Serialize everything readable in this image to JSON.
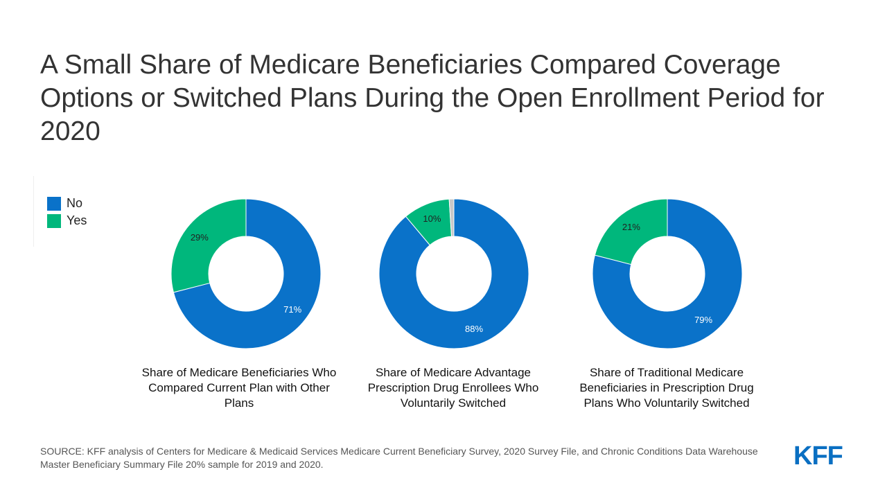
{
  "title": "A Small Share of Medicare Beneficiaries Compared Coverage Options or Switched Plans During the Open Enrollment Period for 2020",
  "legend": [
    {
      "label": "No",
      "color": "#0a72c9"
    },
    {
      "label": "Yes",
      "color": "#00b77c"
    }
  ],
  "chart_data": [
    {
      "type": "pie",
      "subtype": "donut",
      "title": "Share of Medicare Beneficiaries Who Compared Current Plan with Other Plans",
      "slices": [
        {
          "name": "No",
          "value": 71,
          "label": "71%",
          "color": "#0a72c9"
        },
        {
          "name": "Yes",
          "value": 29,
          "label": "29%",
          "color": "#00b77c"
        }
      ]
    },
    {
      "type": "pie",
      "subtype": "donut",
      "title": "Share of Medicare Advantage Prescription Drug Enrollees Who Voluntarily Switched",
      "slices": [
        {
          "name": "No",
          "value": 88,
          "label": "88%",
          "color": "#0a72c9"
        },
        {
          "name": "Yes",
          "value": 10,
          "label": "10%",
          "color": "#00b77c"
        },
        {
          "name": "",
          "value": 1,
          "label": "",
          "color": "#c7c7c7"
        }
      ]
    },
    {
      "type": "pie",
      "subtype": "donut",
      "title": "Share of Traditional Medicare Beneficiaries in Prescription Drug Plans Who Voluntarily Switched",
      "slices": [
        {
          "name": "No",
          "value": 79,
          "label": "79%",
          "color": "#0a72c9"
        },
        {
          "name": "Yes",
          "value": 21,
          "label": "21%",
          "color": "#00b77c"
        }
      ]
    }
  ],
  "source": "SOURCE: KFF analysis of Centers for Medicare & Medicaid Services Medicare Current Beneficiary Survey, 2020 Survey File, and Chronic Conditions Data Warehouse Master Beneficiary Summary File 20% sample for 2019 and 2020.",
  "logo": "KFF"
}
